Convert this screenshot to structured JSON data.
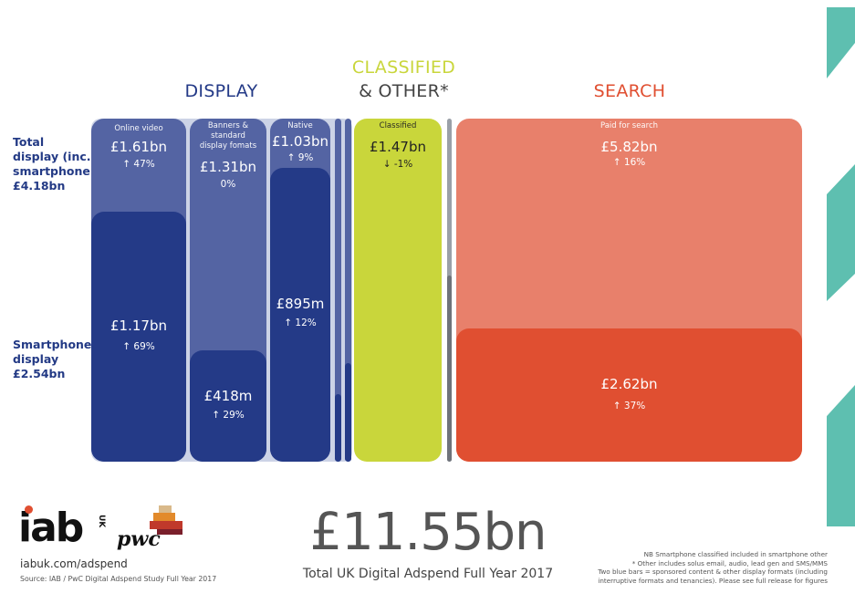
{
  "chart_data": {
    "type": "treemap",
    "total": {
      "value": "£11.55bn",
      "label": "Total UK Digital Adspend Full Year 2017"
    },
    "groups": [
      {
        "name": "DISPLAY",
        "cells": [
          {
            "name": "Online video",
            "total": "£1.61bn",
            "total_change": "↑ 47%",
            "smartphone": "£1.17bn",
            "smartphone_change": "↑ 69%"
          },
          {
            "name": "Banners & standard display fomats",
            "total": "£1.31bn",
            "total_change": "0%",
            "smartphone": "£418m",
            "smartphone_change": "↑ 29%"
          },
          {
            "name": "Native",
            "total": "£1.03bn",
            "total_change": "↑ 9%",
            "smartphone": "£895m",
            "smartphone_change": "↑ 12%"
          }
        ]
      },
      {
        "name": "CLASSIFIED & OTHER*",
        "cells": [
          {
            "name": "Classified",
            "total": "£1.47bn",
            "total_change": "↓ -1%"
          }
        ]
      },
      {
        "name": "SEARCH",
        "cells": [
          {
            "name": "Paid for search",
            "total": "£5.82bn",
            "total_change": "↑ 16%",
            "smartphone": "£2.62bn",
            "smartphone_change": "↑ 37%"
          }
        ]
      }
    ],
    "row_labels": {
      "total_display": [
        "Total",
        "display (inc.",
        "smartphone)",
        "£4.18bn"
      ],
      "smartphone_display": [
        "Smartphone",
        "display",
        "£2.54bn"
      ]
    }
  },
  "headers": {
    "display": "DISPLAY",
    "classified_line1": "CLASSIFIED",
    "classified_line2": "& OTHER*",
    "search": "SEARCH"
  },
  "footer": {
    "logo_iab": "iab",
    "logo_uk": "UK",
    "logo_pwc": "pwc",
    "url": "iabuk.com/adspend",
    "source": "Source: IAB / PwC Digital Adspend Study Full Year 2017",
    "notes": [
      "NB Smartphone classified included in smartphone other",
      "* Other includes solus email, audio, lead gen and SMS/MMS",
      "Two blue bars = sponsored content & other display formats (including",
      "interruptive formats and tenancies). Please see full release for figures"
    ]
  },
  "colors": {
    "display_total": "#5464a3",
    "display_smartphone": "#243a87",
    "display_bg": "#ccd3e6",
    "classified": "#c9d63b",
    "search_total": "#e8806b",
    "search_smartphone": "#e04f31",
    "teal_accent": "#5ebfb0",
    "gray_bar": "#8a8e96"
  }
}
